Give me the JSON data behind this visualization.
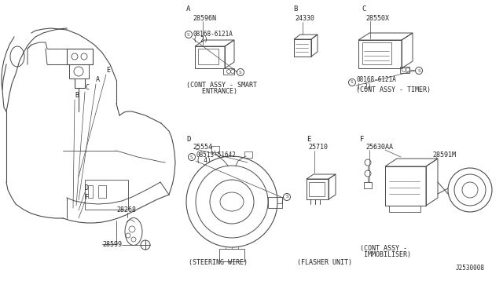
{
  "bg_color": "#ffffff",
  "line_color": "#4a4a4a",
  "text_color": "#222222",
  "labels": {
    "A_section": "A",
    "B_section": "B",
    "C_section": "C",
    "D_section": "D",
    "E_section": "E",
    "F_section": "F",
    "part_A": "28596N",
    "part_A_sub": "08168-6121A",
    "part_A_sub2": "( 2)",
    "part_A_label1": "(CONT ASSY - SMART",
    "part_A_label2": "    ENTRANCE)",
    "part_B": "24330",
    "part_C": "28550X",
    "part_C_sub": "08168-6121A",
    "part_C_sub2": "( 2)",
    "part_C_label": "(CONT ASSY - TIMER)",
    "part_D": "25554",
    "part_D_sub": "08513-51642",
    "part_D_sub2": "( 4)",
    "part_D_label": "(STEERING WIRE)",
    "part_E_label": "(FLASHER UNIT)",
    "part_E": "25710",
    "part_F": "25630AA",
    "part_F2": "28591M",
    "part_F_label1": "(CONT ASSY -",
    "part_F_label2": " IMMOBILISER)",
    "part_dash1": "28268",
    "part_dash2": "28599",
    "ref_num": "J2530008"
  },
  "layout": {
    "fig_w": 6.4,
    "fig_h": 3.72,
    "dpi": 100
  }
}
